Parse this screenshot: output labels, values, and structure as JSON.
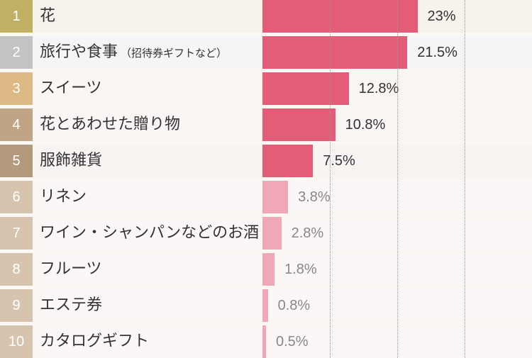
{
  "chart_data": {
    "type": "bar",
    "orientation": "horizontal",
    "title": "",
    "xlabel": "",
    "ylabel": "",
    "xlim": [
      0,
      30
    ],
    "gridlines_at": [
      10,
      20,
      30
    ],
    "unit": "%",
    "items": [
      {
        "rank": "1",
        "label": "花",
        "sub": "",
        "value": 23,
        "value_label": "23%",
        "rank_color": "#c0b064",
        "bar_color": "#e35d78",
        "label_color": "#333333",
        "row_bg": "#f6f3ec"
      },
      {
        "rank": "2",
        "label": "旅行や食事",
        "sub": "（招待券ギフトなど）",
        "value": 21.5,
        "value_label": "21.5%",
        "rank_color": "#c3c3c3",
        "bar_color": "#e35d78",
        "label_color": "#333333",
        "row_bg": "#f5f5f7"
      },
      {
        "rank": "3",
        "label": "スイーツ",
        "sub": "",
        "value": 12.8,
        "value_label": "12.8%",
        "rank_color": "#dcb985",
        "bar_color": "#e35d78",
        "label_color": "#333333",
        "row_bg": "#fbf6f1"
      },
      {
        "rank": "4",
        "label": "花とあわせた贈り物",
        "sub": "",
        "value": 10.8,
        "value_label": "10.8%",
        "rank_color": "#c0a585",
        "bar_color": "#e35d78",
        "label_color": "#333333",
        "row_bg": "#f9f5f2"
      },
      {
        "rank": "5",
        "label": "服飾雑貨",
        "sub": "",
        "value": 7.5,
        "value_label": "7.5%",
        "rank_color": "#b49a7c",
        "bar_color": "#e35d78",
        "label_color": "#333333",
        "row_bg": "#f8f4f1"
      },
      {
        "rank": "6",
        "label": "リネン",
        "sub": "",
        "value": 3.8,
        "value_label": "3.8%",
        "rank_color": "#d6c4ae",
        "bar_color": "#f1a8b6",
        "label_color": "#888888",
        "row_bg": "#fbf7f6"
      },
      {
        "rank": "7",
        "label": "ワイン・シャンパンなどのお酒",
        "sub": "",
        "value": 2.8,
        "value_label": "2.8%",
        "rank_color": "#d6c4ae",
        "bar_color": "#f1a8b6",
        "label_color": "#888888",
        "row_bg": "#fbf7f6"
      },
      {
        "rank": "8",
        "label": "フルーツ",
        "sub": "",
        "value": 1.8,
        "value_label": "1.8%",
        "rank_color": "#d6c4ae",
        "bar_color": "#f1a8b6",
        "label_color": "#888888",
        "row_bg": "#fbf7f6"
      },
      {
        "rank": "9",
        "label": "エステ券",
        "sub": "",
        "value": 0.8,
        "value_label": "0.8%",
        "rank_color": "#d6c4ae",
        "bar_color": "#f1a8b6",
        "label_color": "#888888",
        "row_bg": "#fbf7f6"
      },
      {
        "rank": "10",
        "label": "カタログギフト",
        "sub": "",
        "value": 0.5,
        "value_label": "0.5%",
        "rank_color": "#d6c4ae",
        "bar_color": "#f1a8b6",
        "label_color": "#888888",
        "row_bg": "#fbf7f6"
      }
    ]
  }
}
